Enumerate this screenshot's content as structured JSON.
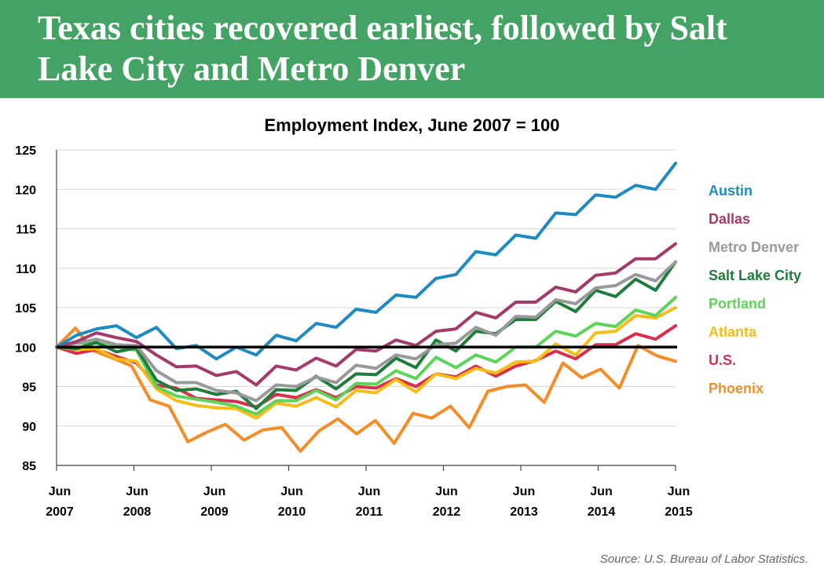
{
  "header": {
    "title": "Texas cities recovered earliest, followed by Salt Lake City and Metro Denver"
  },
  "source": "Source: U.S. Bureau of Labor Statistics.",
  "chart_data": {
    "type": "line",
    "title": "Employment Index, June 2007 = 100",
    "xlabel": "",
    "ylabel": "",
    "ylim": [
      85,
      125
    ],
    "y_ticks": [
      85,
      90,
      95,
      100,
      105,
      110,
      115,
      120,
      125
    ],
    "x_ticks": [
      {
        "label": "Jun",
        "year": "2007",
        "t": 2007.5
      },
      {
        "label": "Jun",
        "year": "2008",
        "t": 2008.5
      },
      {
        "label": "Jun",
        "year": "2009",
        "t": 2009.5
      },
      {
        "label": "Jun",
        "year": "2010",
        "t": 2010.5
      },
      {
        "label": "Jun",
        "year": "2011",
        "t": 2011.5
      },
      {
        "label": "Jun",
        "year": "2012",
        "t": 2012.5
      },
      {
        "label": "Jun",
        "year": "2013",
        "t": 2013.5
      },
      {
        "label": "Jun",
        "year": "2014",
        "t": 2014.5
      },
      {
        "label": "Jun",
        "year": "2015",
        "t": 2015.5
      }
    ],
    "x_start": 2007.5,
    "step": 0.25,
    "reference_line": 100,
    "grid": true,
    "legend_position": "right",
    "series": [
      {
        "name": "Austin",
        "color": "#1f8ac0",
        "values": [
          100,
          101.5,
          102.3,
          102.7,
          101.2,
          102.5,
          99.8,
          100.2,
          98.5,
          100.0,
          99.0,
          101.5,
          100.8,
          103.0,
          102.5,
          104.8,
          104.4,
          106.6,
          106.3,
          108.7,
          109.2,
          112.1,
          111.7,
          114.2,
          113.8,
          117.0,
          116.8,
          119.3,
          119.0,
          120.5,
          120.0,
          123.3
        ]
      },
      {
        "name": "Dallas",
        "color": "#a23a6b",
        "values": [
          100,
          100.7,
          101.8,
          101.2,
          100.7,
          99.0,
          97.5,
          97.6,
          96.4,
          96.9,
          95.2,
          97.6,
          97.1,
          98.6,
          97.6,
          99.7,
          99.5,
          100.9,
          100.2,
          102.0,
          102.3,
          104.4,
          103.7,
          105.7,
          105.7,
          107.6,
          107.0,
          109.1,
          109.4,
          111.2,
          111.2,
          113.1
        ]
      },
      {
        "name": "Metro Denver",
        "color": "#999999",
        "values": [
          100,
          100.5,
          101.0,
          100.3,
          100.2,
          97.0,
          95.5,
          95.5,
          94.5,
          94.2,
          93.2,
          95.2,
          95.0,
          96.2,
          95.5,
          97.7,
          97.3,
          99.0,
          98.5,
          100.3,
          100.5,
          102.5,
          101.5,
          103.9,
          103.8,
          106.0,
          105.5,
          107.5,
          107.8,
          109.2,
          108.4,
          110.8
        ]
      },
      {
        "name": "Salt Lake City",
        "color": "#1e7d3a",
        "values": [
          100,
          99.8,
          100.6,
          99.4,
          99.9,
          95.8,
          94.5,
          94.7,
          94.0,
          94.4,
          92.2,
          94.6,
          94.5,
          96.3,
          94.7,
          96.6,
          96.5,
          98.6,
          97.4,
          100.9,
          99.5,
          102.0,
          101.7,
          103.5,
          103.5,
          105.8,
          104.5,
          107.2,
          106.4,
          108.6,
          107.2,
          110.8
        ]
      },
      {
        "name": "Portland",
        "color": "#5ed35a",
        "values": [
          100,
          100.5,
          100.5,
          100.0,
          99.6,
          95.0,
          93.8,
          93.4,
          93.0,
          92.5,
          91.5,
          93.2,
          93.2,
          94.5,
          93.3,
          95.4,
          95.3,
          97.0,
          96.0,
          98.7,
          97.4,
          99.0,
          98.1,
          100.0,
          100.0,
          102.0,
          101.4,
          103.0,
          102.6,
          104.7,
          104.0,
          106.3
        ]
      },
      {
        "name": "Atlanta",
        "color": "#f7bd16",
        "values": [
          100,
          99.7,
          99.8,
          98.5,
          98.2,
          94.7,
          93.2,
          92.6,
          92.3,
          92.2,
          91.0,
          92.9,
          92.5,
          93.6,
          92.4,
          94.5,
          94.2,
          95.9,
          94.3,
          96.6,
          96.0,
          97.3,
          96.7,
          98.1,
          98.2,
          100.4,
          99.0,
          101.8,
          102.0,
          104.0,
          103.7,
          105.0
        ]
      },
      {
        "name": "U.S.",
        "color": "#d6304d",
        "values": [
          100,
          99.2,
          99.7,
          98.8,
          98.0,
          95.2,
          94.8,
          93.5,
          93.3,
          93.1,
          92.4,
          94.0,
          93.6,
          94.6,
          93.6,
          95.0,
          94.8,
          96.0,
          95.0,
          96.6,
          96.2,
          97.6,
          96.3,
          97.6,
          98.3,
          99.5,
          98.5,
          100.3,
          100.3,
          101.7,
          101.0,
          102.7
        ]
      },
      {
        "name": "Phoenix",
        "color": "#f58c2a",
        "values": [
          100,
          102.4,
          99.5,
          98.6,
          97.6,
          93.3,
          92.5,
          88.0,
          89.2,
          90.2,
          88.2,
          89.5,
          89.8,
          86.8,
          89.4,
          90.9,
          89.0,
          90.7,
          87.8,
          91.6,
          91.0,
          92.5,
          89.8,
          94.4,
          95.0,
          95.2,
          93.0,
          98.0,
          96.1,
          97.2,
          94.8,
          100.2,
          98.9,
          98.2
        ]
      }
    ]
  }
}
